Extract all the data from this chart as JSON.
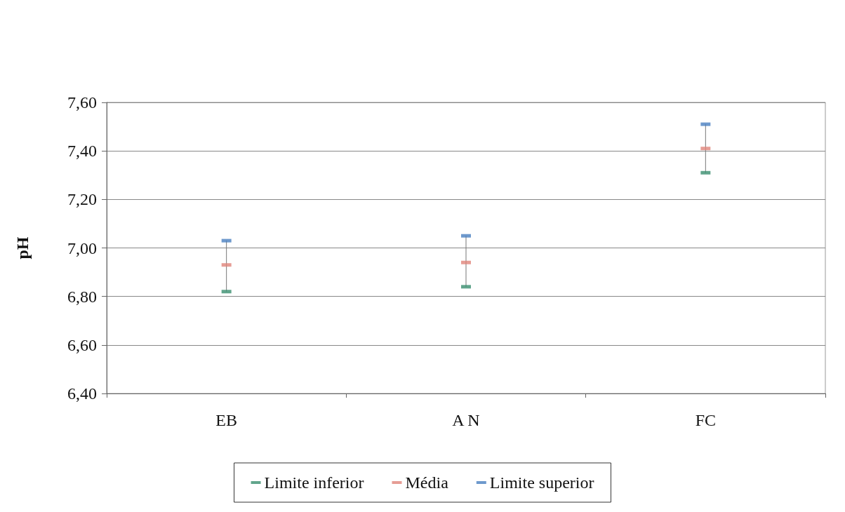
{
  "chart_data": {
    "type": "scatter",
    "ylabel": "pH",
    "categories": [
      "EB",
      "A N",
      "FC"
    ],
    "series": [
      {
        "name": "Limite inferior",
        "color": "#3a8f6f",
        "values": [
          6.82,
          6.84,
          7.31
        ]
      },
      {
        "name": "Média",
        "color": "#e0847a",
        "values": [
          6.93,
          6.94,
          7.41
        ]
      },
      {
        "name": "Limite superior",
        "color": "#4a7fc0",
        "values": [
          7.03,
          7.05,
          7.51
        ]
      }
    ],
    "ylim": [
      6.4,
      7.6
    ],
    "yticks": [
      {
        "value": 6.4,
        "label": "6,40"
      },
      {
        "value": 6.6,
        "label": "6,60"
      },
      {
        "value": 6.8,
        "label": "6,80"
      },
      {
        "value": 7.0,
        "label": "7,00"
      },
      {
        "value": 7.2,
        "label": "7,20"
      },
      {
        "value": 7.4,
        "label": "7,40"
      },
      {
        "value": 7.6,
        "label": "7,60"
      }
    ],
    "grid": "y",
    "legend": "bottom"
  }
}
